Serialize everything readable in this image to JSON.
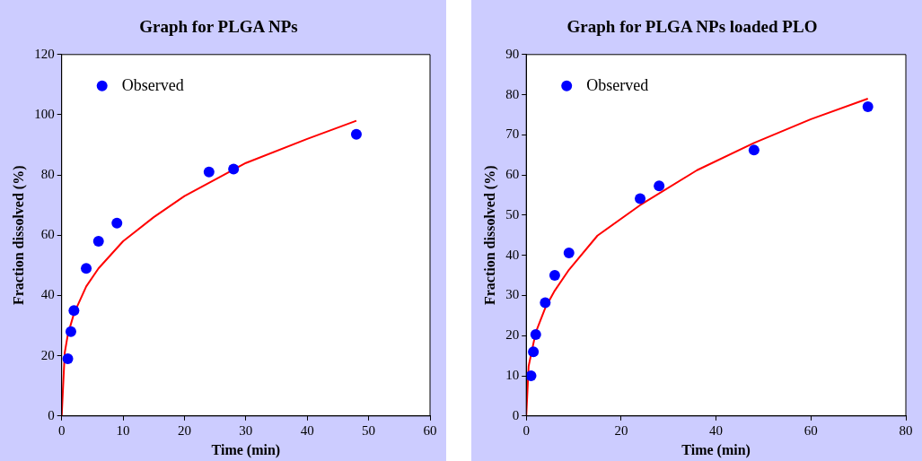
{
  "chart_data": [
    {
      "type": "scatter",
      "title": "Graph for PLGA NPs",
      "xlabel": "Time (min)",
      "ylabel": "Fraction dissolved (%)",
      "xlim": [
        0,
        60
      ],
      "xticks": [
        0,
        10,
        20,
        30,
        40,
        50,
        60
      ],
      "ylim": [
        0,
        120
      ],
      "yticks": [
        0,
        20,
        40,
        60,
        80,
        100,
        120
      ],
      "grid": false,
      "legend": "top left",
      "marker": "circle",
      "series": [
        {
          "name": "Observed",
          "color": "#0000ff",
          "x": [
            1,
            1.5,
            2,
            4,
            6,
            9,
            24,
            28,
            48
          ],
          "values": [
            19,
            28,
            35,
            49,
            58,
            64,
            81,
            82,
            93.5
          ]
        },
        {
          "type": "line",
          "color": "#ff0000",
          "marker": "none",
          "x": [
            0,
            0.5,
            1,
            2,
            4,
            6,
            10,
            15,
            20,
            30,
            40,
            48
          ],
          "values": [
            0,
            21,
            27,
            34,
            43,
            49,
            58,
            66,
            73,
            84,
            92,
            98
          ]
        }
      ]
    },
    {
      "type": "scatter",
      "title": "Graph for PLGA NPs loaded PLO",
      "xlabel": "Time (min)",
      "ylabel": "Fraction dissolved (%)",
      "xlim": [
        0,
        80
      ],
      "xticks": [
        0,
        20,
        40,
        60,
        80
      ],
      "ylim": [
        0,
        90
      ],
      "yticks": [
        0,
        10,
        20,
        30,
        40,
        50,
        60,
        70,
        80,
        90
      ],
      "grid": false,
      "legend": "top left",
      "marker": "circle",
      "series": [
        {
          "name": "Observed",
          "color": "#0000ff",
          "x": [
            1,
            1.5,
            2,
            4,
            6,
            9,
            24,
            28,
            48,
            72
          ],
          "values": [
            10,
            16,
            20.3,
            28.2,
            35,
            40.6,
            54.1,
            57.3,
            66.2,
            77
          ]
        },
        {
          "type": "line",
          "color": "#ff0000",
          "marker": "none",
          "x": [
            0,
            0.5,
            2,
            4,
            6,
            9,
            15,
            24,
            36,
            48,
            60,
            72
          ],
          "values": [
            0,
            12.4,
            20.8,
            26.9,
            31.2,
            36.4,
            44.9,
            52.5,
            61.2,
            68,
            73.9,
            79
          ]
        }
      ]
    }
  ]
}
